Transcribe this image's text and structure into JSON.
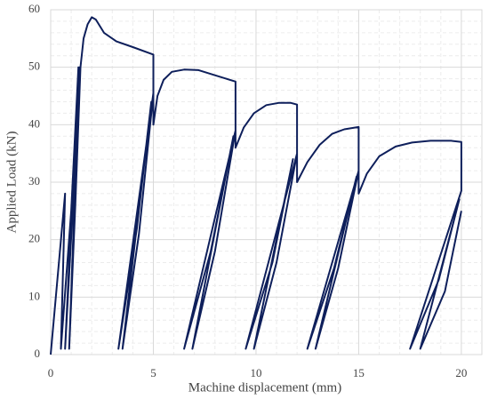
{
  "chart_data": {
    "type": "line",
    "x_label": "Machine displacement (mm)",
    "y_label": "Applied Load (kN)",
    "x": [
      0,
      0.7,
      0.5,
      1.0,
      1.35,
      0.7,
      1.1,
      1.4,
      0.9,
      1.2,
      1.45,
      1.6,
      1.8,
      2.0,
      2.2,
      2.6,
      3.2,
      4.0,
      5.0,
      5.0,
      3.3,
      4.2,
      4.9,
      3.5,
      4.3,
      5.0,
      5.0,
      5.2,
      5.5,
      5.9,
      6.5,
      7.2,
      8.0,
      9.0,
      9.0,
      6.5,
      7.8,
      8.9,
      6.9,
      8.0,
      9.0,
      9.0,
      9.4,
      9.9,
      10.5,
      11.1,
      11.7,
      12.0,
      12.0,
      9.5,
      10.8,
      11.8,
      9.9,
      11.0,
      12.0,
      12.0,
      12.5,
      13.1,
      13.7,
      14.3,
      15.0,
      15.0,
      12.5,
      13.8,
      14.9,
      12.9,
      14.0,
      15.0,
      15.0,
      15.4,
      16.0,
      16.8,
      17.6,
      18.5,
      19.5,
      20.0,
      20.0,
      17.5,
      18.9,
      19.9,
      18.0,
      19.2,
      20.0
    ],
    "values": [
      0,
      28,
      1,
      25,
      50,
      1,
      27,
      50,
      1,
      26,
      50,
      55,
      57.5,
      58.7,
      58.3,
      56,
      54.5,
      53.5,
      52.2,
      45.5,
      1,
      22,
      44,
      1,
      21,
      45.5,
      40,
      45,
      47.8,
      49.2,
      49.6,
      49.5,
      48.6,
      47.5,
      39,
      1,
      18,
      38,
      1,
      18,
      39,
      36,
      39.5,
      42,
      43.4,
      43.8,
      43.8,
      43.5,
      35,
      1,
      16,
      34,
      1,
      16,
      35,
      30,
      33.5,
      36.5,
      38.4,
      39.2,
      39.6,
      32,
      1,
      15,
      31,
      1,
      15,
      32,
      28,
      31.5,
      34.5,
      36.2,
      36.9,
      37.2,
      37.2,
      37,
      28.5,
      1,
      13,
      27,
      1,
      11,
      25
    ],
    "color": "#0e1f5b",
    "xlim": [
      0,
      21
    ],
    "xticks": [
      0,
      5,
      10,
      15,
      20
    ],
    "ylim": [
      0,
      60
    ],
    "yticks": [
      0,
      10,
      20,
      30,
      40,
      50,
      60
    ],
    "grid": true,
    "minor_grid": true
  }
}
